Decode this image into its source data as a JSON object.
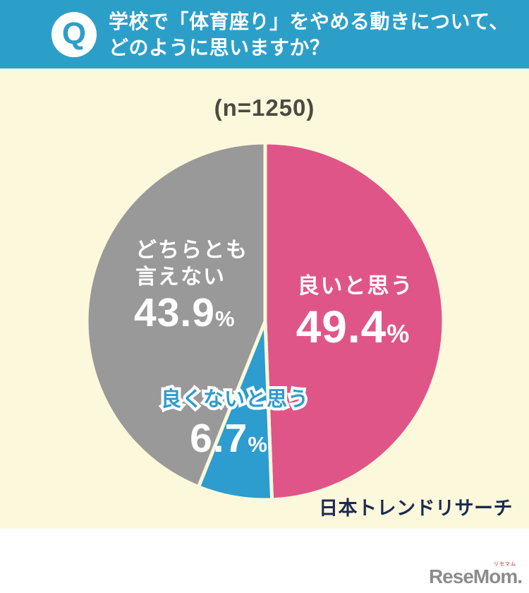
{
  "header": {
    "q_badge": "Q",
    "question_lines": [
      "学校で「体育座り」をやめる動きについて、",
      "どのように思いますか？"
    ]
  },
  "chart_data": {
    "type": "pie",
    "sample_note": "(n=1250)",
    "start_angle": "12-oclock, clockwise",
    "percent_symbol": "%",
    "legend_position": "labels inside slices",
    "slices": [
      {
        "label": "良いと思う",
        "value": 49.4,
        "display": "49.4",
        "color": "#E05588"
      },
      {
        "label": "良くないと思う",
        "value": 6.7,
        "display": "6.7",
        "color": "#2D9CCE"
      },
      {
        "label": "どちらとも言えない",
        "value": 43.9,
        "display": "43.9",
        "color": "#999999",
        "label_lines": [
          "どちらとも",
          "言えない"
        ]
      }
    ]
  },
  "source": {
    "name": "日本トレンドリサーチ"
  },
  "footer": {
    "logo_text": "ReseMom.",
    "logo_ruby": "リセマム"
  },
  "colors": {
    "header_bg": "#2C9FC9",
    "background": "#FCF8DB",
    "pink": "#E05588",
    "blue": "#2D9CCE",
    "gray": "#999999",
    "navy_text": "#1B2A50",
    "note_text": "#4A4A42",
    "logo_gray": "#8C8C8C",
    "ruby_red": "#E25B67"
  }
}
